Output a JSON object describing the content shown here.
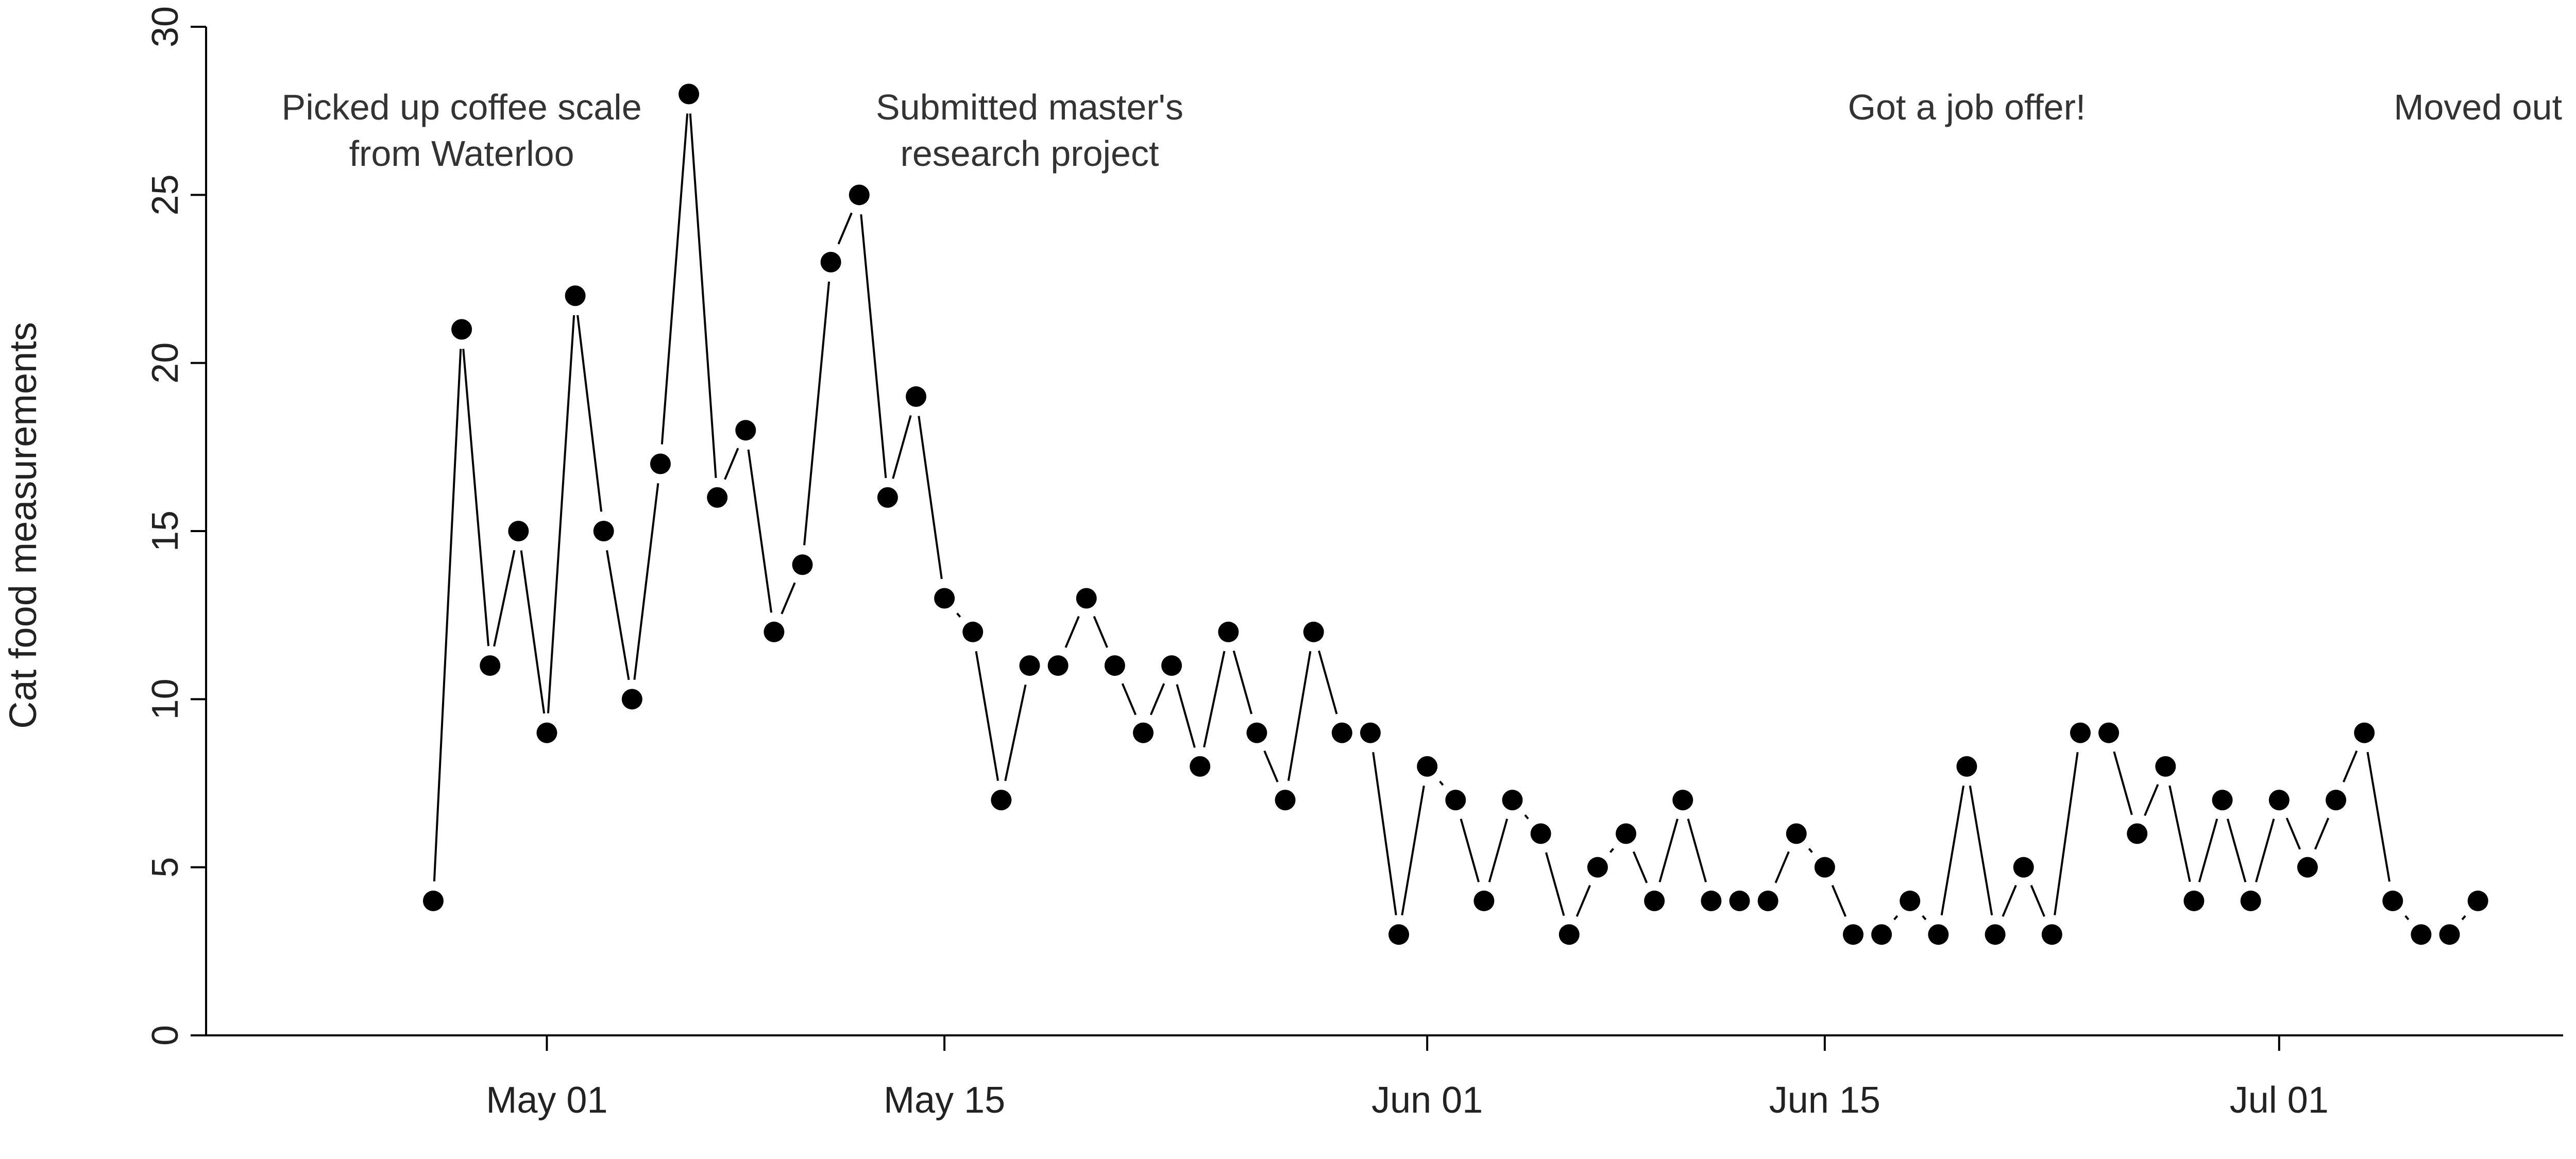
{
  "chart_data": {
    "type": "line",
    "ylabel": "Cat food measurements",
    "xlabel": "",
    "ylim": [
      0,
      30
    ],
    "yticks": [
      0,
      5,
      10,
      15,
      20,
      25,
      30
    ],
    "xlim": [
      "2021-04-19",
      "2021-07-11"
    ],
    "xticks": [
      {
        "date": "2021-05-01",
        "label": "May 01"
      },
      {
        "date": "2021-05-15",
        "label": "May 15"
      },
      {
        "date": "2021-06-01",
        "label": "Jun 01"
      },
      {
        "date": "2021-06-15",
        "label": "Jun 15"
      },
      {
        "date": "2021-07-01",
        "label": "Jul 01"
      }
    ],
    "grid": false,
    "marker": "filled-circle",
    "series": [
      {
        "x": [
          "2021-04-27",
          "2021-04-28",
          "2021-04-29",
          "2021-04-30",
          "2021-05-01",
          "2021-05-02",
          "2021-05-03",
          "2021-05-04",
          "2021-05-05",
          "2021-05-06",
          "2021-05-07",
          "2021-05-08",
          "2021-05-09",
          "2021-05-10",
          "2021-05-11",
          "2021-05-12",
          "2021-05-13",
          "2021-05-14",
          "2021-05-15",
          "2021-05-16",
          "2021-05-17",
          "2021-05-18",
          "2021-05-19",
          "2021-05-20",
          "2021-05-21",
          "2021-05-22",
          "2021-05-23",
          "2021-05-24",
          "2021-05-25",
          "2021-05-26",
          "2021-05-27",
          "2021-05-28",
          "2021-05-29",
          "2021-05-30",
          "2021-05-31",
          "2021-06-01",
          "2021-06-02",
          "2021-06-03",
          "2021-06-04",
          "2021-06-05",
          "2021-06-06",
          "2021-06-07",
          "2021-06-08",
          "2021-06-09",
          "2021-06-10",
          "2021-06-11",
          "2021-06-12",
          "2021-06-13",
          "2021-06-14",
          "2021-06-15",
          "2021-06-16",
          "2021-06-17",
          "2021-06-18",
          "2021-06-19",
          "2021-06-20",
          "2021-06-21",
          "2021-06-22",
          "2021-06-23",
          "2021-06-24",
          "2021-06-25",
          "2021-06-26",
          "2021-06-27",
          "2021-06-28",
          "2021-06-29",
          "2021-06-30",
          "2021-07-01",
          "2021-07-02",
          "2021-07-03",
          "2021-07-04",
          "2021-07-05",
          "2021-07-06",
          "2021-07-07",
          "2021-07-08"
        ],
        "values": [
          4,
          21,
          11,
          15,
          9,
          22,
          15,
          10,
          17,
          28,
          16,
          18,
          12,
          14,
          23,
          25,
          16,
          19,
          13,
          12,
          7,
          11,
          11,
          13,
          11,
          9,
          11,
          8,
          12,
          9,
          7,
          12,
          9,
          9,
          3,
          8,
          7,
          4,
          7,
          6,
          3,
          5,
          6,
          4,
          7,
          4,
          4,
          4,
          6,
          5,
          3,
          3,
          4,
          3,
          8,
          3,
          5,
          3,
          9,
          9,
          6,
          8,
          4,
          7,
          4,
          7,
          5,
          7,
          9,
          4,
          3,
          3,
          4
        ]
      }
    ],
    "annotations": [
      {
        "date": "2021-04-28",
        "lines": [
          "Picked up coffee scale",
          "from Waterloo"
        ]
      },
      {
        "date": "2021-05-18",
        "lines": [
          "Submitted master's",
          "research project"
        ]
      },
      {
        "date": "2021-06-20",
        "lines": [
          "Got a job offer!"
        ]
      },
      {
        "date": "2021-07-08",
        "lines": [
          "Moved out"
        ]
      }
    ]
  }
}
